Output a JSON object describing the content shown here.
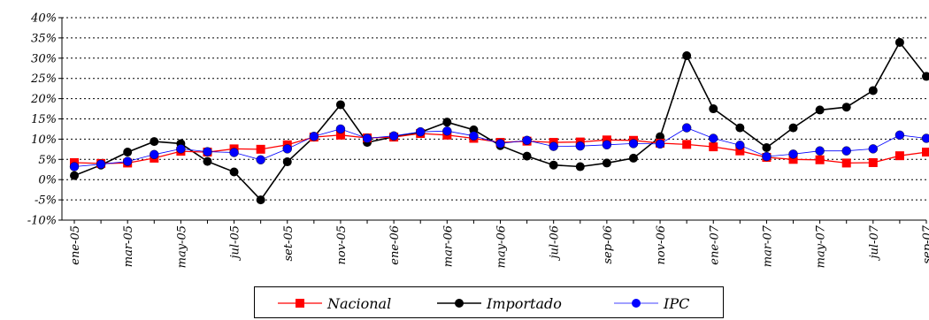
{
  "chart_data": {
    "type": "line",
    "categories": [
      "ene-05",
      "feb-05",
      "mar-05",
      "abr-05",
      "may-05",
      "jun-05",
      "jul-05",
      "ago-05",
      "set-05",
      "oct-05",
      "nov-05",
      "dic-05",
      "ene-06",
      "feb-06",
      "mar-06",
      "abr-06",
      "may-06",
      "jun-06",
      "jul-06",
      "ago-06",
      "sep-06",
      "oct-06",
      "nov-06",
      "dic-06",
      "ene-07",
      "feb-07",
      "mar-07",
      "abr-07",
      "may-07",
      "jun-07",
      "jul-07",
      "ago-07",
      "sep-07"
    ],
    "x_tick_labels": [
      "ene-05",
      "mar-05",
      "may-05",
      "jul-05",
      "set-05",
      "nov-05",
      "ene-06",
      "mar-06",
      "may-06",
      "jul-06",
      "sep-06",
      "nov-06",
      "ene-07",
      "mar-07",
      "may-07",
      "jul-07",
      "sep-07"
    ],
    "y_tick_labels": [
      "-10%",
      "-5%",
      "0%",
      "5%",
      "10%",
      "15%",
      "20%",
      "25%",
      "30%",
      "35%",
      "40%"
    ],
    "ylim": [
      -10,
      40
    ],
    "grid": true,
    "legend_position": "bottom",
    "series": [
      {
        "name": "Nacional",
        "color": "#ff0000",
        "marker": "square",
        "values": [
          4.2,
          4.0,
          4.1,
          5.3,
          7.0,
          6.8,
          7.6,
          7.5,
          8.6,
          10.5,
          11.0,
          10.3,
          10.5,
          11.4,
          11.0,
          10.2,
          9.2,
          9.5,
          9.2,
          9.3,
          9.8,
          9.7,
          9.0,
          8.7,
          8.1,
          7.1,
          5.5,
          5.0,
          4.9,
          4.1,
          4.2,
          5.9,
          6.8
        ]
      },
      {
        "name": "Importado",
        "color": "#000000",
        "marker": "circle",
        "values": [
          1.0,
          3.6,
          6.8,
          9.4,
          8.9,
          4.5,
          1.9,
          -5.0,
          4.4,
          10.5,
          18.5,
          9.2,
          10.6,
          11.7,
          14.2,
          12.3,
          8.4,
          5.8,
          3.6,
          3.2,
          4.1,
          5.3,
          10.6,
          30.6,
          17.5,
          12.8,
          7.9,
          12.8,
          17.2,
          17.9,
          22.0,
          33.9,
          25.5
        ]
      },
      {
        "name": "IPC",
        "color": "#0000ff",
        "marker": "circle",
        "values": [
          3.2,
          3.8,
          4.5,
          6.2,
          7.6,
          6.9,
          6.7,
          4.9,
          7.6,
          10.7,
          12.5,
          10.2,
          10.8,
          11.8,
          12.0,
          10.8,
          8.9,
          9.7,
          8.2,
          8.3,
          8.6,
          8.9,
          8.8,
          12.8,
          10.2,
          8.5,
          5.7,
          6.3,
          7.1,
          7.1,
          7.6,
          11.0,
          10.2
        ]
      }
    ]
  },
  "legend": {
    "items": [
      "Nacional",
      "Importado",
      "IPC"
    ]
  }
}
